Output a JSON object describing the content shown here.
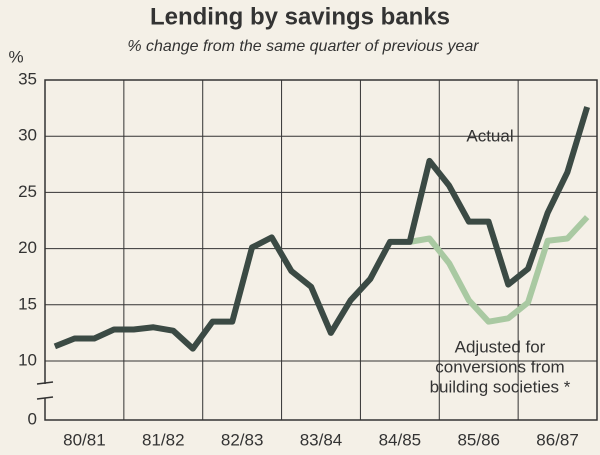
{
  "chart_data": {
    "type": "line",
    "title": "Lending by savings banks",
    "subtitle": "% change from the same quarter of previous year",
    "y_label": "%",
    "categories": [
      null,
      "80/81",
      null,
      null,
      null,
      "81/82",
      null,
      null,
      null,
      "82/83",
      null,
      null,
      null,
      "83/84",
      null,
      null,
      null,
      "84/85",
      null,
      null,
      null,
      "85/86",
      null,
      null,
      null,
      "86/87",
      null,
      null
    ],
    "series": [
      {
        "name": "Actual",
        "color": "#3b4a44",
        "values": [
          11.3,
          12,
          12,
          12.8,
          12.8,
          13,
          12.7,
          11.1,
          13.5,
          13.5,
          20.1,
          21,
          18,
          16.6,
          12.5,
          15.4,
          17.3,
          20.6,
          20.6,
          27.8,
          25.6,
          22.4,
          22.4,
          16.8,
          18.2,
          23.2,
          26.8,
          32.6
        ]
      },
      {
        "name": "Adjusted for conversions from building societies *",
        "color": "#a9c9a2",
        "values": [
          null,
          null,
          null,
          null,
          null,
          null,
          null,
          null,
          null,
          null,
          null,
          null,
          null,
          null,
          null,
          null,
          null,
          null,
          20.6,
          20.9,
          18.7,
          15.4,
          13.5,
          13.8,
          15.2,
          20.7,
          20.9,
          22.8
        ]
      }
    ],
    "annotations": [
      [
        "Actual"
      ],
      [
        "Adjusted for",
        "conversions from",
        "building societies *"
      ]
    ],
    "ylim": [
      0,
      35
    ],
    "yticks": [
      0,
      10,
      15,
      20,
      25,
      30,
      35
    ],
    "y_break": [
      0,
      10
    ],
    "grid": true
  }
}
